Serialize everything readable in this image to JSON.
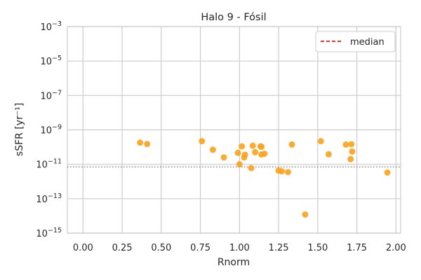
{
  "chart_data": {
    "type": "scatter",
    "title": "Halo 9 - Fósil",
    "xlabel": "Rnorm",
    "ylabel": "sSFR [yr⁻¹]",
    "xlim": [
      -0.1,
      2.03
    ],
    "ylim": [
      1e-15,
      0.001
    ],
    "yscale": "log",
    "grid": true,
    "x_ticks": [
      {
        "value": 0.0,
        "label": "0.00"
      },
      {
        "value": 0.25,
        "label": "0.25"
      },
      {
        "value": 0.5,
        "label": "0.50"
      },
      {
        "value": 0.75,
        "label": "0.75"
      },
      {
        "value": 1.0,
        "label": "1.00"
      },
      {
        "value": 1.25,
        "label": "1.25"
      },
      {
        "value": 1.5,
        "label": "1.50"
      },
      {
        "value": 1.75,
        "label": "1.75"
      },
      {
        "value": 2.0,
        "label": "2.00"
      }
    ],
    "y_ticks": [
      {
        "exp": -15,
        "base": "10",
        "sup": "−15"
      },
      {
        "exp": -13,
        "base": "10",
        "sup": "−13"
      },
      {
        "exp": -11,
        "base": "10",
        "sup": "−11"
      },
      {
        "exp": -9,
        "base": "10",
        "sup": "−9"
      },
      {
        "exp": -7,
        "base": "10",
        "sup": "−7"
      },
      {
        "exp": -5,
        "base": "10",
        "sup": "−5"
      },
      {
        "exp": -3,
        "base": "10",
        "sup": "−3"
      }
    ],
    "points": [
      {
        "x": 0.365,
        "y": 1.8e-10
      },
      {
        "x": 0.41,
        "y": 1.5e-10
      },
      {
        "x": 0.76,
        "y": 2.2e-10
      },
      {
        "x": 0.83,
        "y": 7e-11
      },
      {
        "x": 0.9,
        "y": 2.5e-11
      },
      {
        "x": 0.99,
        "y": 4.6e-11
      },
      {
        "x": 1.0,
        "y": 1e-11
      },
      {
        "x": 1.015,
        "y": 1.1e-10
      },
      {
        "x": 1.03,
        "y": 2.5e-11
      },
      {
        "x": 1.035,
        "y": 3.6e-11
      },
      {
        "x": 1.075,
        "y": 6e-12
      },
      {
        "x": 1.085,
        "y": 1.2e-10
      },
      {
        "x": 1.1,
        "y": 5e-11
      },
      {
        "x": 1.135,
        "y": 1.1e-10
      },
      {
        "x": 1.14,
        "y": 1.05e-10
      },
      {
        "x": 1.14,
        "y": 3.7e-11
      },
      {
        "x": 1.16,
        "y": 4.1e-11
      },
      {
        "x": 1.25,
        "y": 4.3e-12
      },
      {
        "x": 1.27,
        "y": 3.9e-12
      },
      {
        "x": 1.31,
        "y": 3.5e-12
      },
      {
        "x": 1.335,
        "y": 1.4e-10
      },
      {
        "x": 1.42,
        "y": 1.2e-14
      },
      {
        "x": 1.52,
        "y": 2.2e-10
      },
      {
        "x": 1.57,
        "y": 3.8e-11
      },
      {
        "x": 1.68,
        "y": 1.4e-10
      },
      {
        "x": 1.71,
        "y": 2e-11
      },
      {
        "x": 1.715,
        "y": 1.45e-10
      },
      {
        "x": 1.72,
        "y": 5.5e-11
      },
      {
        "x": 1.945,
        "y": 3.3e-12
      }
    ],
    "median_line": {
      "y": 7e-12,
      "style": "dotted",
      "color": "#808080"
    },
    "legend": {
      "placement": "top-right",
      "entries": [
        {
          "label": "median",
          "color": "#e41a1c",
          "style": "dashed"
        }
      ]
    },
    "point_color": "#f9a21b"
  }
}
